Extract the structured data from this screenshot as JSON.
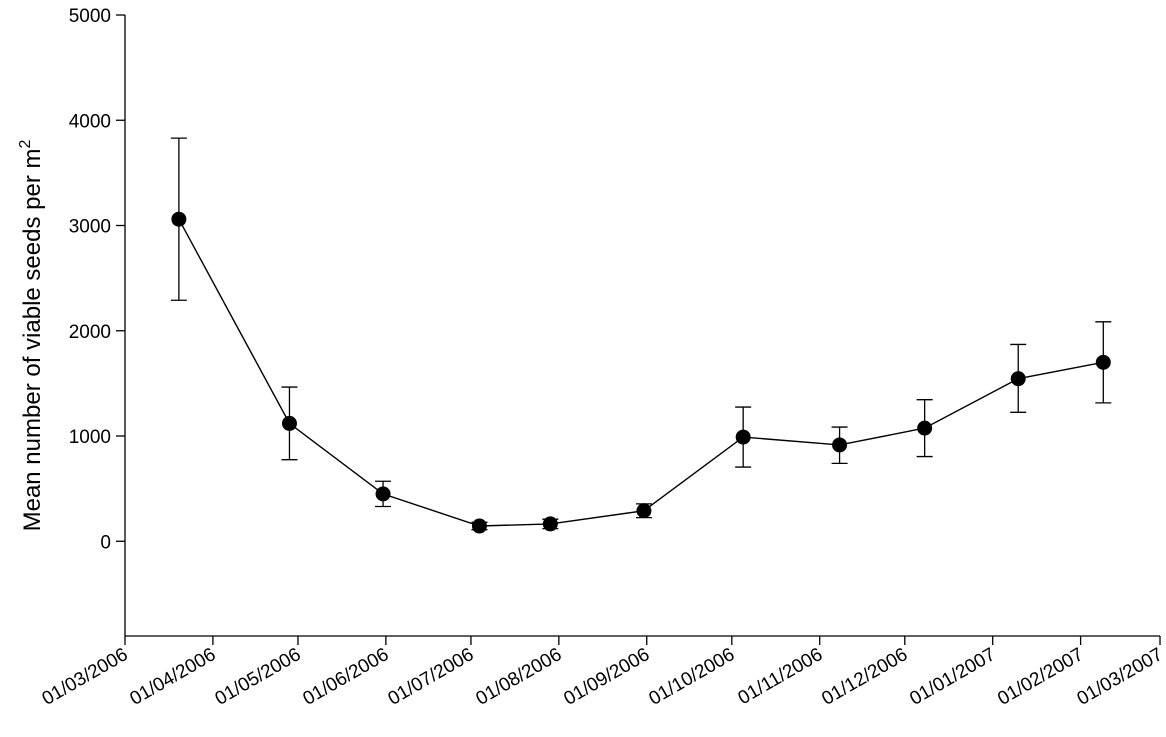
{
  "chart_data": {
    "type": "line",
    "title": "",
    "xlabel": "",
    "ylabel": "Mean number of viable seeds per m",
    "ylabel_superscript": "2",
    "x_ticks": [
      "01/03/2006",
      "01/04/2006",
      "01/05/2006",
      "01/06/2006",
      "01/07/2006",
      "01/08/2006",
      "01/09/2006",
      "01/10/2006",
      "01/11/2006",
      "01/12/2006",
      "01/01/2007",
      "01/02/2007",
      "01/03/2007"
    ],
    "y_ticks": [
      "0",
      "1000",
      "2000",
      "3000",
      "4000",
      "5000"
    ],
    "ylim": [
      -900,
      5000
    ],
    "xlim": [
      "2006-03-01",
      "2007-03-01"
    ],
    "grid": false,
    "series": [
      {
        "color": "#000000",
        "marker": "filled-circle",
        "points": [
          {
            "x": "2006-03-20",
            "y": 3060,
            "err_low": 2290,
            "err_high": 3830
          },
          {
            "x": "2006-04-28",
            "y": 1120,
            "err_low": 775,
            "err_high": 1465
          },
          {
            "x": "2006-05-31",
            "y": 450,
            "err_low": 330,
            "err_high": 570
          },
          {
            "x": "2006-07-04",
            "y": 145,
            "err_low": 110,
            "err_high": 180
          },
          {
            "x": "2006-07-29",
            "y": 165,
            "err_low": 120,
            "err_high": 210
          },
          {
            "x": "2006-08-31",
            "y": 290,
            "err_low": 225,
            "err_high": 355
          },
          {
            "x": "2006-10-05",
            "y": 990,
            "err_low": 705,
            "err_high": 1275
          },
          {
            "x": "2006-11-08",
            "y": 915,
            "err_low": 740,
            "err_high": 1085
          },
          {
            "x": "2006-12-08",
            "y": 1075,
            "err_low": 805,
            "err_high": 1345
          },
          {
            "x": "2007-01-10",
            "y": 1545,
            "err_low": 1225,
            "err_high": 1870
          },
          {
            "x": "2007-02-09",
            "y": 1700,
            "err_low": 1315,
            "err_high": 2085
          }
        ]
      }
    ]
  }
}
